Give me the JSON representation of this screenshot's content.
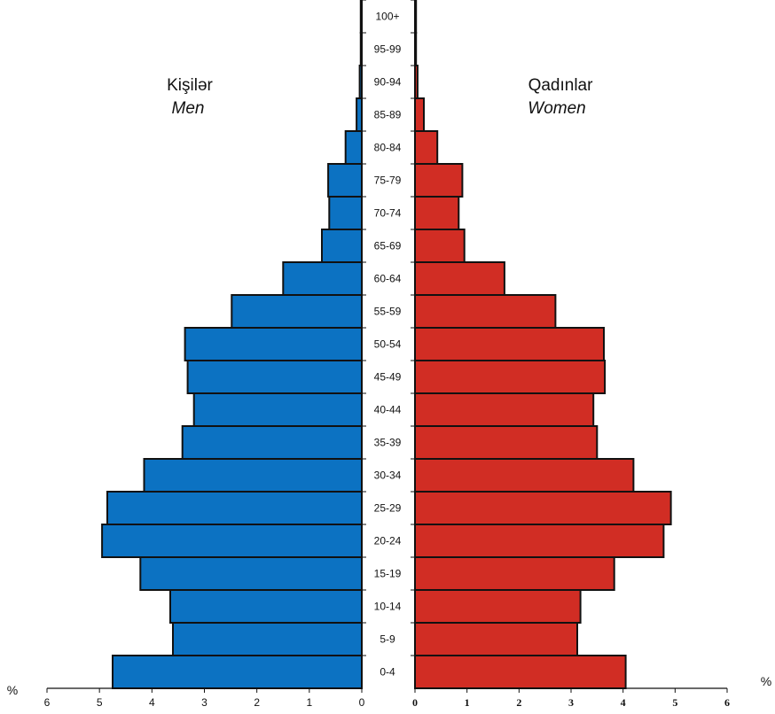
{
  "chart_data": {
    "type": "bar",
    "orientation": "horizontal-population-pyramid",
    "categories": [
      "0-4",
      "5-9",
      "10-14",
      "15-19",
      "20-24",
      "25-29",
      "30-34",
      "35-39",
      "40-44",
      "45-49",
      "50-54",
      "55-59",
      "60-64",
      "65-69",
      "70-74",
      "75-79",
      "80-84",
      "85-89",
      "90-94",
      "95-99",
      "100+"
    ],
    "series": [
      {
        "name": "Kişilər",
        "name_en": "Men",
        "side": "left",
        "color": "#0c72c2",
        "values": [
          4.75,
          3.6,
          3.65,
          4.22,
          4.95,
          4.85,
          4.15,
          3.42,
          3.2,
          3.32,
          3.37,
          2.48,
          1.5,
          0.76,
          0.62,
          0.64,
          0.31,
          0.1,
          0.04,
          0.02,
          0.0
        ]
      },
      {
        "name": "Qadınlar",
        "name_en": "Women",
        "side": "right",
        "color": "#d12d24",
        "values": [
          4.05,
          3.12,
          3.18,
          3.83,
          4.78,
          4.92,
          4.2,
          3.5,
          3.43,
          3.65,
          3.63,
          2.7,
          1.72,
          0.95,
          0.84,
          0.91,
          0.43,
          0.17,
          0.05,
          0.02,
          0.0
        ]
      }
    ],
    "xlim": [
      0,
      6
    ],
    "ticks_left": [
      "0",
      "1",
      "2",
      "3",
      "4",
      "5",
      "6"
    ],
    "ticks_right": [
      "0",
      "1",
      "2",
      "3",
      "4",
      "5",
      "6"
    ],
    "unit_left": "%",
    "unit_right": "%",
    "grid": false
  }
}
